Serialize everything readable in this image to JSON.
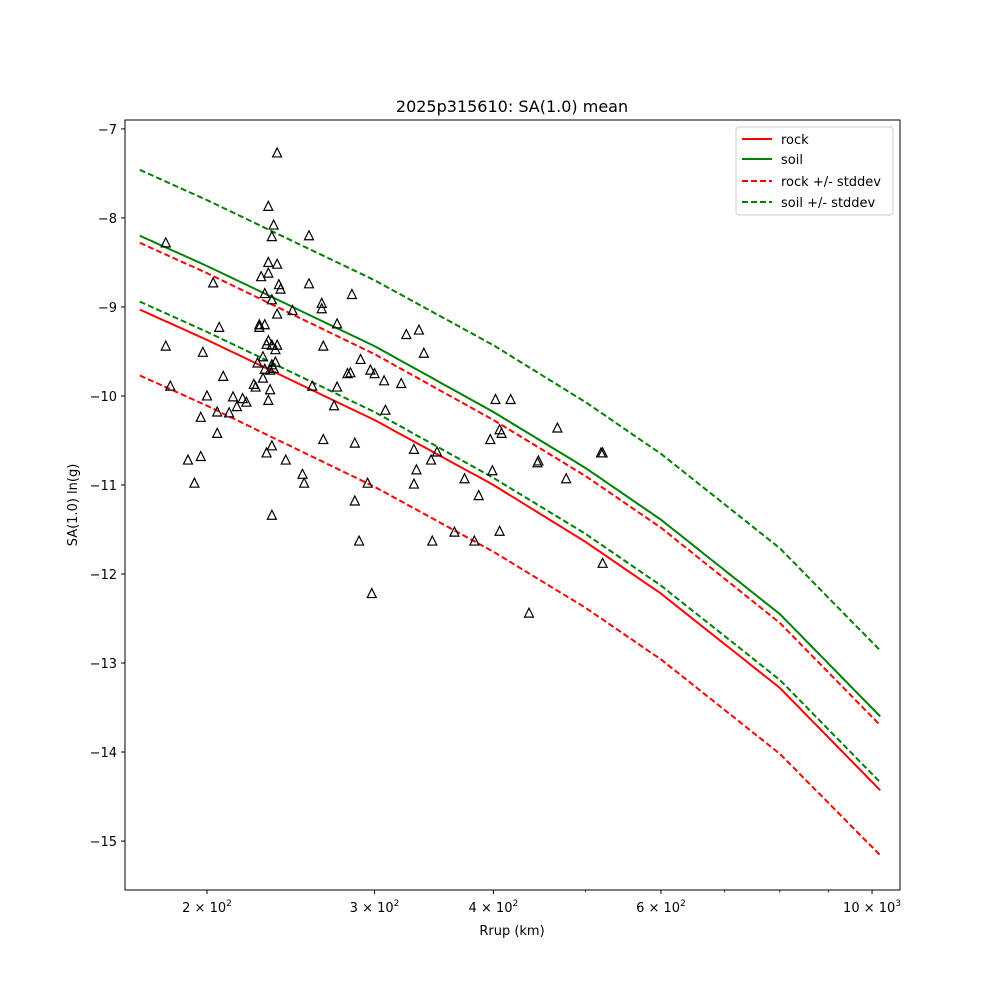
{
  "chart_data": {
    "type": "line",
    "title": "2025p315610: SA(1.0) mean",
    "xlabel": "Rrup (km)",
    "ylabel": "SA(1.0) ln(g)",
    "x_scale": "log",
    "xlim": [
      164,
      1070
    ],
    "ylim": [
      -15.55,
      -6.9
    ],
    "x_ticks": [
      {
        "value": 200,
        "base": "2",
        "exp": "2"
      },
      {
        "value": 300,
        "base": "3",
        "exp": "2"
      },
      {
        "value": 400,
        "base": "4",
        "exp": "2"
      },
      {
        "value": 600,
        "base": "6",
        "exp": "2"
      },
      {
        "value": 1000,
        "base": "10",
        "exp": "3"
      }
    ],
    "x_minor_ticks": [
      500,
      700,
      800,
      900
    ],
    "y_ticks": [
      {
        "value": -7,
        "label": "−7"
      },
      {
        "value": -8,
        "label": "−8"
      },
      {
        "value": -9,
        "label": "−9"
      },
      {
        "value": -10,
        "label": "−10"
      },
      {
        "value": -11,
        "label": "−11"
      },
      {
        "value": -12,
        "label": "−12"
      },
      {
        "value": -13,
        "label": "−13"
      },
      {
        "value": -14,
        "label": "−14"
      },
      {
        "value": -15,
        "label": "−15"
      }
    ],
    "grid": false,
    "legend_position": "top-right",
    "colors": {
      "rock": "#ff0000",
      "soil": "#008000",
      "points": "#000000"
    },
    "series": [
      {
        "name": "rock",
        "style": "solid",
        "color": "#ff0000",
        "x": [
          170,
          200,
          300,
          400,
          500,
          600,
          800,
          1020
        ],
        "y": [
          -9.03,
          -9.37,
          -10.27,
          -11.0,
          -11.64,
          -12.22,
          -13.28,
          -14.43
        ]
      },
      {
        "name": "soil",
        "style": "solid",
        "color": "#008000",
        "x": [
          170,
          200,
          300,
          400,
          500,
          600,
          800,
          1020
        ],
        "y": [
          -8.2,
          -8.54,
          -9.44,
          -10.18,
          -10.81,
          -11.39,
          -12.45,
          -13.6
        ]
      },
      {
        "name": "rock +/- stddev",
        "style": "dashed",
        "color": "#ff0000",
        "x": [
          170,
          200,
          300,
          400,
          500,
          600,
          800,
          1020
        ],
        "y_upper": [
          -8.28,
          -8.62,
          -9.53,
          -10.27,
          -10.9,
          -11.48,
          -12.55,
          -13.7
        ],
        "y_lower": [
          -9.77,
          -10.11,
          -11.02,
          -11.75,
          -12.38,
          -12.96,
          -14.02,
          -15.16
        ]
      },
      {
        "name": "soil +/- stddev",
        "style": "dashed",
        "color": "#008000",
        "x": [
          170,
          200,
          300,
          400,
          500,
          600,
          800,
          1020
        ],
        "y_upper": [
          -7.46,
          -7.8,
          -8.7,
          -9.43,
          -10.07,
          -10.65,
          -11.71,
          -12.86
        ],
        "y_lower": [
          -8.94,
          -9.28,
          -10.18,
          -10.92,
          -11.55,
          -12.13,
          -13.19,
          -14.34
        ]
      }
    ],
    "points": [
      {
        "x": 181,
        "y": -8.28
      },
      {
        "x": 181,
        "y": -9.44
      },
      {
        "x": 183,
        "y": -9.89
      },
      {
        "x": 191,
        "y": -10.72
      },
      {
        "x": 194,
        "y": -10.98
      },
      {
        "x": 197,
        "y": -10.24
      },
      {
        "x": 197,
        "y": -10.68
      },
      {
        "x": 198,
        "y": -9.51
      },
      {
        "x": 200,
        "y": -10.0
      },
      {
        "x": 203,
        "y": -8.73
      },
      {
        "x": 205,
        "y": -10.18
      },
      {
        "x": 205,
        "y": -10.42
      },
      {
        "x": 206,
        "y": -9.23
      },
      {
        "x": 208,
        "y": -9.78
      },
      {
        "x": 211,
        "y": -10.19
      },
      {
        "x": 213,
        "y": -10.01
      },
      {
        "x": 215,
        "y": -10.12
      },
      {
        "x": 218,
        "y": -10.03
      },
      {
        "x": 220,
        "y": -10.07
      },
      {
        "x": 224,
        "y": -9.87
      },
      {
        "x": 225,
        "y": -9.9
      },
      {
        "x": 226,
        "y": -9.63
      },
      {
        "x": 227,
        "y": -9.23
      },
      {
        "x": 227,
        "y": -9.2
      },
      {
        "x": 228,
        "y": -8.66
      },
      {
        "x": 229,
        "y": -9.8
      },
      {
        "x": 229,
        "y": -9.56
      },
      {
        "x": 230,
        "y": -9.2
      },
      {
        "x": 230,
        "y": -8.85
      },
      {
        "x": 230,
        "y": -9.7
      },
      {
        "x": 231,
        "y": -10.64
      },
      {
        "x": 231,
        "y": -9.42
      },
      {
        "x": 232,
        "y": -7.87
      },
      {
        "x": 232,
        "y": -8.5
      },
      {
        "x": 232,
        "y": -8.62
      },
      {
        "x": 232,
        "y": -9.38
      },
      {
        "x": 232,
        "y": -10.05
      },
      {
        "x": 233,
        "y": -9.71
      },
      {
        "x": 233,
        "y": -9.93
      },
      {
        "x": 234,
        "y": -8.21
      },
      {
        "x": 234,
        "y": -8.92
      },
      {
        "x": 234,
        "y": -9.43
      },
      {
        "x": 234,
        "y": -9.65
      },
      {
        "x": 234,
        "y": -10.56
      },
      {
        "x": 234,
        "y": -11.34
      },
      {
        "x": 235,
        "y": -8.08
      },
      {
        "x": 235,
        "y": -9.69
      },
      {
        "x": 236,
        "y": -9.48
      },
      {
        "x": 236,
        "y": -9.62
      },
      {
        "x": 237,
        "y": -7.27
      },
      {
        "x": 237,
        "y": -8.52
      },
      {
        "x": 237,
        "y": -9.08
      },
      {
        "x": 237,
        "y": -9.43
      },
      {
        "x": 238,
        "y": -8.75
      },
      {
        "x": 239,
        "y": -8.8
      },
      {
        "x": 242,
        "y": -10.72
      },
      {
        "x": 246,
        "y": -9.04
      },
      {
        "x": 252,
        "y": -10.88
      },
      {
        "x": 253,
        "y": -10.98
      },
      {
        "x": 256,
        "y": -8.2
      },
      {
        "x": 256,
        "y": -8.74
      },
      {
        "x": 258,
        "y": -9.89
      },
      {
        "x": 264,
        "y": -8.96
      },
      {
        "x": 264,
        "y": -9.02
      },
      {
        "x": 265,
        "y": -9.44
      },
      {
        "x": 265,
        "y": -10.49
      },
      {
        "x": 272,
        "y": -10.11
      },
      {
        "x": 274,
        "y": -9.19
      },
      {
        "x": 274,
        "y": -9.9
      },
      {
        "x": 281,
        "y": -9.75
      },
      {
        "x": 283,
        "y": -9.74
      },
      {
        "x": 284,
        "y": -8.86
      },
      {
        "x": 286,
        "y": -10.53
      },
      {
        "x": 286,
        "y": -11.18
      },
      {
        "x": 289,
        "y": -11.63
      },
      {
        "x": 290,
        "y": -9.59
      },
      {
        "x": 295,
        "y": -10.98
      },
      {
        "x": 297,
        "y": -9.71
      },
      {
        "x": 298,
        "y": -12.22
      },
      {
        "x": 300,
        "y": -9.75
      },
      {
        "x": 307,
        "y": -9.83
      },
      {
        "x": 308,
        "y": -10.16
      },
      {
        "x": 320,
        "y": -9.86
      },
      {
        "x": 324,
        "y": -9.31
      },
      {
        "x": 330,
        "y": -10.6
      },
      {
        "x": 330,
        "y": -10.99
      },
      {
        "x": 332,
        "y": -10.83
      },
      {
        "x": 334,
        "y": -9.26
      },
      {
        "x": 338,
        "y": -9.52
      },
      {
        "x": 344,
        "y": -10.72
      },
      {
        "x": 345,
        "y": -11.63
      },
      {
        "x": 349,
        "y": -10.63
      },
      {
        "x": 364,
        "y": -11.53
      },
      {
        "x": 373,
        "y": -10.93
      },
      {
        "x": 382,
        "y": -11.63
      },
      {
        "x": 386,
        "y": -11.12
      },
      {
        "x": 397,
        "y": -10.49
      },
      {
        "x": 399,
        "y": -10.84
      },
      {
        "x": 402,
        "y": -10.04
      },
      {
        "x": 406,
        "y": -11.52
      },
      {
        "x": 406,
        "y": -10.38
      },
      {
        "x": 408,
        "y": -10.42
      },
      {
        "x": 417,
        "y": -10.04
      },
      {
        "x": 436,
        "y": -12.44
      },
      {
        "x": 445,
        "y": -10.75
      },
      {
        "x": 446,
        "y": -10.73
      },
      {
        "x": 467,
        "y": -10.36
      },
      {
        "x": 477,
        "y": -10.93
      },
      {
        "x": 519,
        "y": -10.64
      },
      {
        "x": 521,
        "y": -10.64
      },
      {
        "x": 521,
        "y": -11.88
      }
    ]
  }
}
